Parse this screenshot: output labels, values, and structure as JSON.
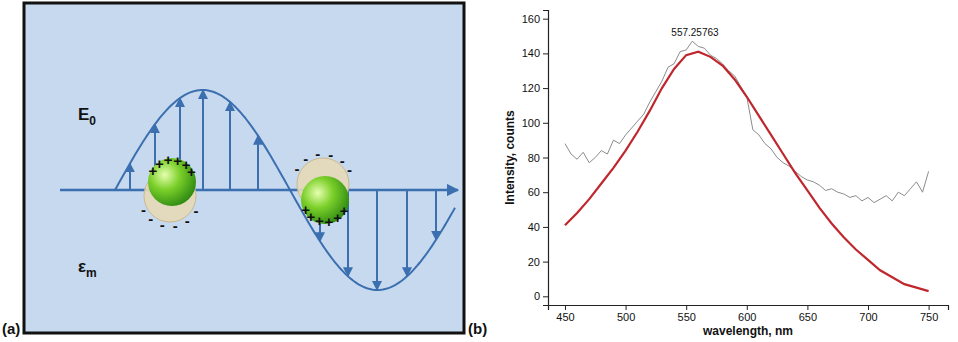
{
  "panel_labels": [
    "(a)",
    "(b)"
  ],
  "diagram": {
    "field_label": {
      "base": "E",
      "subscript": "0"
    },
    "medium_label": {
      "base": "ε",
      "subscript": "m"
    },
    "charges": {
      "positive": "+",
      "negative": "-"
    }
  },
  "chart_data": {
    "type": "line",
    "x_label": "wavelength, nm",
    "y_label": "Intensity, counts",
    "xlim": [
      436,
      766
    ],
    "ylim": [
      -5,
      165
    ],
    "xticks": [
      450,
      500,
      550,
      600,
      650,
      700,
      750
    ],
    "yticks": [
      0,
      20,
      40,
      60,
      80,
      100,
      120,
      140,
      160
    ],
    "grid": false,
    "series": [
      {
        "color": "#8c8c8c",
        "line_style": "solid",
        "x": [
          450,
          455,
          460,
          465,
          470,
          475,
          480,
          485,
          490,
          495,
          500,
          505,
          510,
          515,
          520,
          525,
          530,
          535,
          540,
          545,
          550,
          555,
          560,
          565,
          570,
          575,
          580,
          585,
          590,
          595,
          600,
          605,
          610,
          615,
          620,
          625,
          630,
          635,
          640,
          645,
          650,
          655,
          660,
          665,
          670,
          675,
          680,
          685,
          690,
          695,
          700,
          705,
          710,
          715,
          720,
          725,
          730,
          735,
          740,
          745,
          750
        ],
        "values": [
          88,
          82,
          79,
          83,
          77,
          80,
          84,
          82,
          90,
          88,
          93,
          97,
          101,
          105,
          112,
          118,
          124,
          132,
          134,
          141,
          142,
          147,
          144,
          143,
          139,
          137,
          134,
          130,
          127,
          121,
          115,
          96,
          93,
          88,
          85,
          80,
          77,
          75,
          72,
          69,
          67,
          66,
          64,
          61,
          62,
          60,
          59,
          57,
          58,
          55,
          57,
          54,
          56,
          58,
          55,
          60,
          58,
          62,
          66,
          60,
          72
        ]
      },
      {
        "color": "#c0272d",
        "line_style": "solid",
        "x": [
          450,
          460,
          470,
          480,
          490,
          500,
          510,
          520,
          530,
          540,
          550,
          560,
          570,
          580,
          590,
          600,
          610,
          620,
          630,
          640,
          650,
          660,
          670,
          680,
          690,
          700,
          710,
          720,
          730,
          740,
          750
        ],
        "values": [
          41,
          48,
          56,
          65,
          74,
          84,
          95,
          107,
          120,
          131,
          139,
          141,
          138,
          133,
          125,
          115,
          104,
          93,
          82,
          71,
          61,
          51,
          42,
          34,
          27,
          21,
          15,
          11,
          7,
          5,
          3
        ]
      }
    ],
    "annotations": [
      {
        "text": "557.25763",
        "x": 557.25763,
        "y": 141
      }
    ]
  }
}
